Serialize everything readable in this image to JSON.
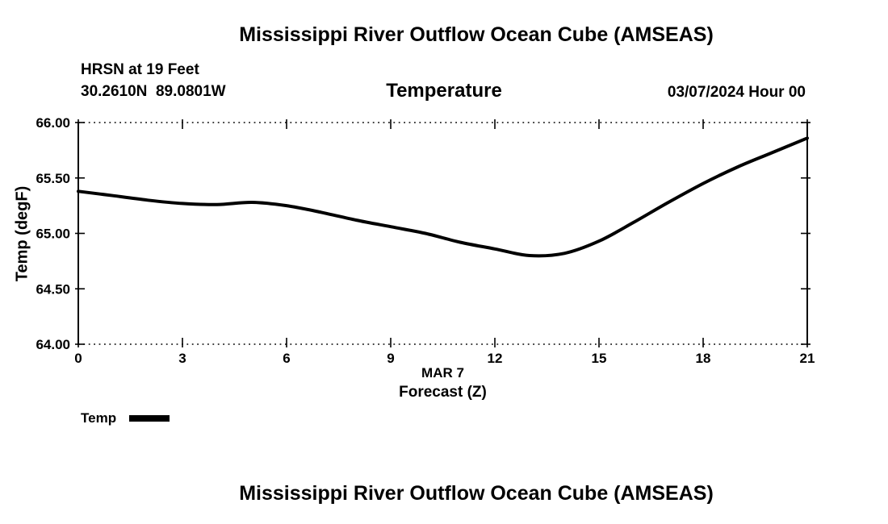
{
  "page": {
    "title_top": "Mississippi River Outflow Ocean Cube (AMSEAS)",
    "title_bottom": "Mississippi River Outflow Ocean Cube (AMSEAS)"
  },
  "header": {
    "station_depth": "HRSN at 19 Feet",
    "coordinates": "30.2610N  89.0801W",
    "run_datetime": "03/07/2024 Hour 00"
  },
  "chart_data": {
    "type": "line",
    "title": "Temperature",
    "ylabel": "Temp (degF)",
    "xlabel_date": "MAR 7",
    "xlabel_axis": "Forecast (Z)",
    "xlim": [
      0,
      21
    ],
    "ylim": [
      64.0,
      66.0
    ],
    "xticks": [
      0,
      3,
      6,
      9,
      12,
      15,
      18,
      21
    ],
    "xtick_labels": [
      "0",
      "3",
      "6",
      "9",
      "12",
      "15",
      "18",
      "21"
    ],
    "yticks": [
      64.0,
      64.5,
      65.0,
      65.5,
      66.0
    ],
    "ytick_labels": [
      "64.00",
      "64.50",
      "65.00",
      "65.50",
      "66.00"
    ],
    "grid": "dotted top and bottom frame, inward ticks on all sides, solid left/right axes",
    "legend_position": "below-left",
    "line_color": "#000000",
    "line_width": 4,
    "legend": [
      {
        "label": "Temp",
        "color": "#000000"
      }
    ],
    "series": [
      {
        "name": "Temp",
        "x": [
          0,
          1,
          2,
          3,
          4,
          5,
          6,
          7,
          8,
          9,
          10,
          11,
          12,
          13,
          14,
          15,
          16,
          17,
          18,
          19,
          20,
          21
        ],
        "values": [
          65.38,
          65.34,
          65.3,
          65.27,
          65.26,
          65.28,
          65.25,
          65.19,
          65.12,
          65.06,
          65.0,
          64.92,
          64.86,
          64.8,
          64.82,
          64.93,
          65.1,
          65.28,
          65.45,
          65.6,
          65.73,
          65.86
        ]
      }
    ]
  }
}
